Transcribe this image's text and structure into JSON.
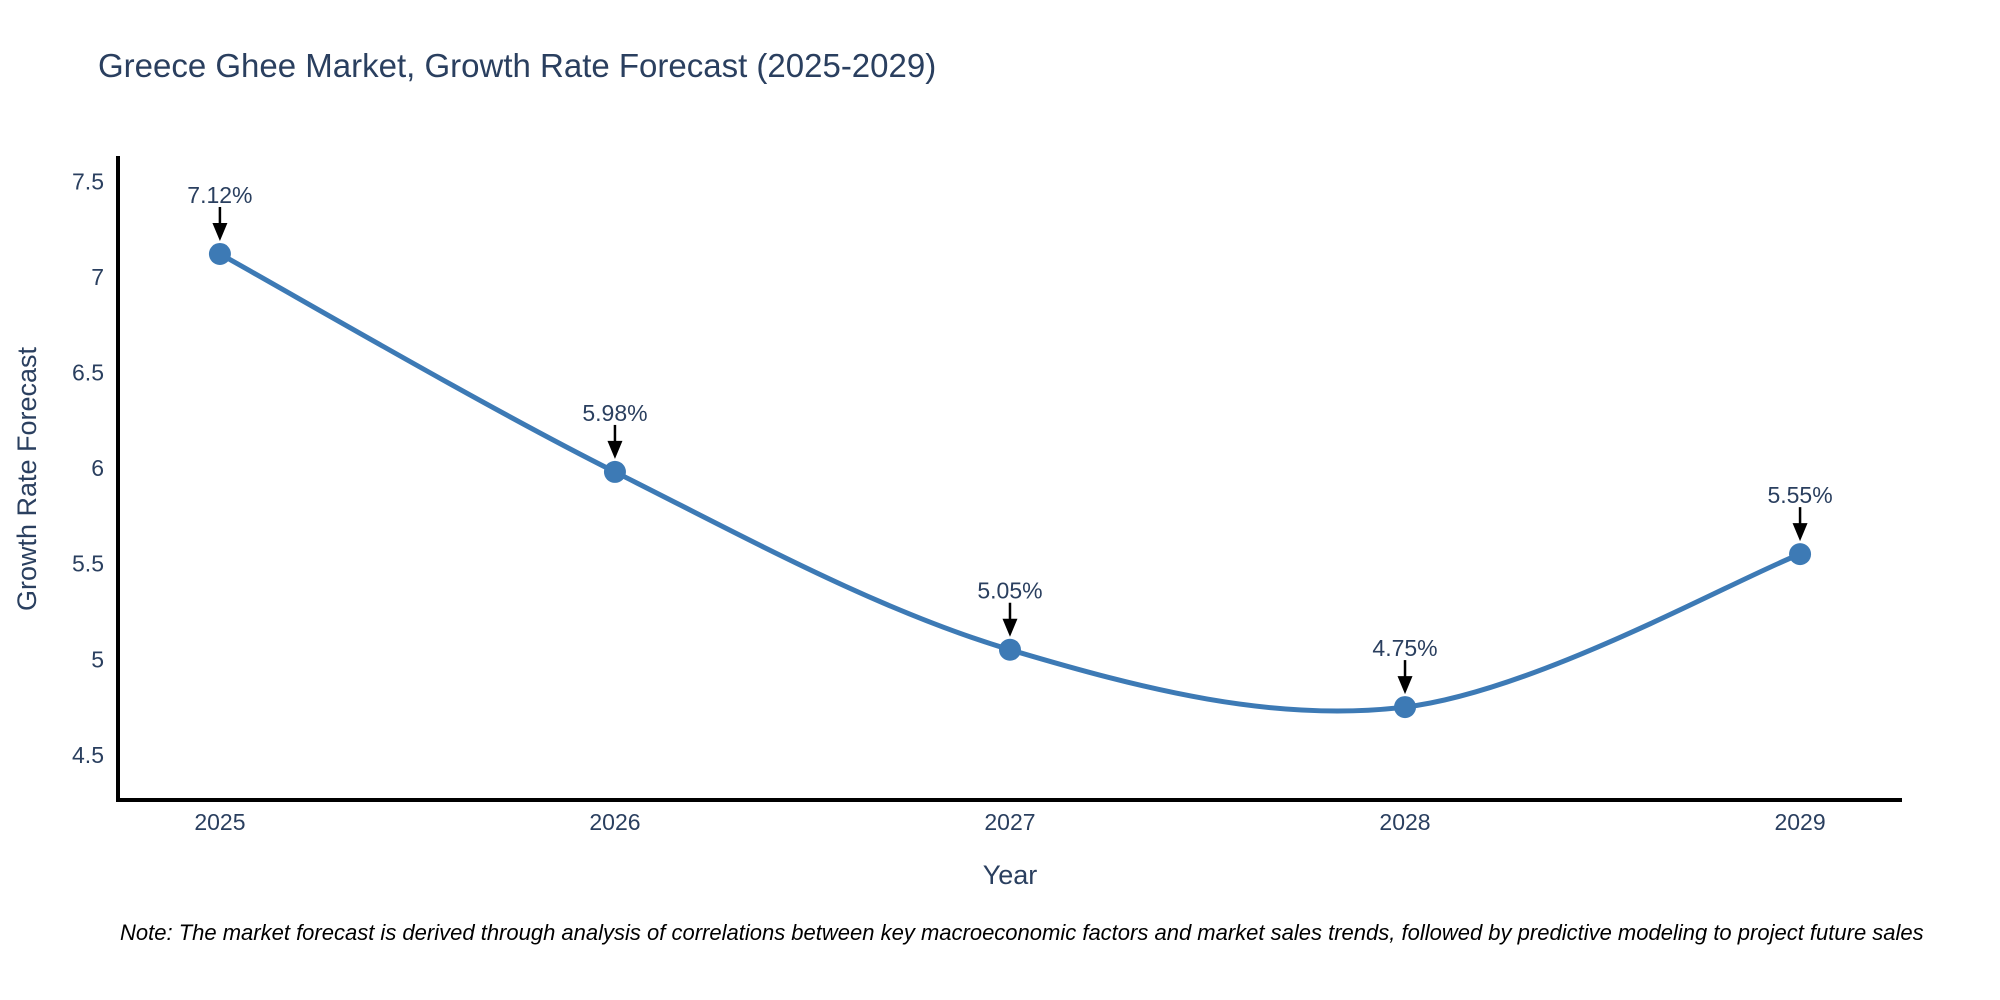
{
  "title": "Greece Ghee Market, Growth Rate Forecast (2025-2029)",
  "note": "Note: The market forecast is derived through analysis of correlations between key macroeconomic factors and market sales trends, followed by predictive modeling to project future sales",
  "chart_data": {
    "type": "line",
    "title": "Greece Ghee Market, Growth Rate Forecast (2025-2029)",
    "xlabel": "Year",
    "ylabel": "Growth Rate Forecast",
    "x": [
      2025,
      2026,
      2027,
      2028,
      2029
    ],
    "series": [
      {
        "name": "Growth Rate Forecast",
        "values": [
          7.12,
          5.98,
          5.05,
          4.75,
          5.55
        ],
        "point_labels": [
          "7.12%",
          "5.98%",
          "5.05%",
          "4.75%",
          "5.55%"
        ]
      }
    ],
    "x_ticks": [
      "2025",
      "2026",
      "2027",
      "2028",
      "2029"
    ],
    "y_ticks": [
      4.5,
      5,
      5.5,
      6,
      6.5,
      7,
      7.5
    ],
    "xlim": [
      2024.742,
      2029.253
    ],
    "ylim": [
      4.264,
      7.622
    ],
    "line_shape": "spline",
    "grid": false,
    "legend_position": "none",
    "annotations_have_arrows": true,
    "colors": {
      "line": "#3d7ab5",
      "marker": "#3d7ab5",
      "text": "#2a3f5f",
      "axis": "#000000",
      "arrow": "#000000",
      "note_text": "#000000",
      "background": "#ffffff"
    }
  }
}
